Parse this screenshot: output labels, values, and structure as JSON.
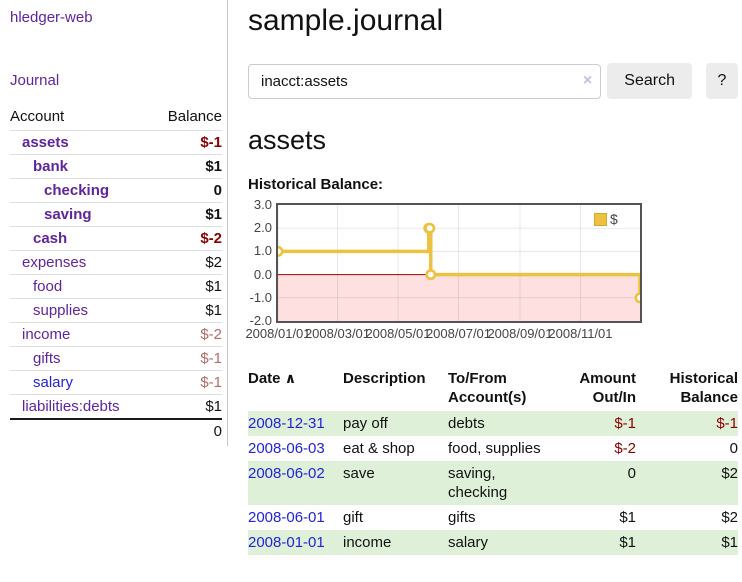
{
  "colors": {
    "link_purple": "#5f249f",
    "link_blue": "#2222dd",
    "negative_strong": "#8b0000",
    "negative_soft": "#b36b6b",
    "stripe_green": "#dff0d8",
    "series_gold": "#edc240"
  },
  "sidebar": {
    "app_title": "hledger-web",
    "journal_link": "Journal",
    "accounts_table": {
      "account_header": "Account",
      "balance_header": "Balance",
      "rows": [
        {
          "account": "assets",
          "level": 1,
          "bold": true,
          "balance": "$-1",
          "balance_style": "neg-strong",
          "link_style": "purple"
        },
        {
          "account": "bank",
          "level": 2,
          "bold": true,
          "balance": "$1",
          "balance_style": "plain",
          "link_style": "purple"
        },
        {
          "account": "checking",
          "level": 3,
          "bold": true,
          "balance": "0",
          "balance_style": "plain",
          "link_style": "purple"
        },
        {
          "account": "saving",
          "level": 3,
          "bold": true,
          "balance": "$1",
          "balance_style": "plain",
          "link_style": "purple"
        },
        {
          "account": "cash",
          "level": 2,
          "bold": true,
          "balance": "$-2",
          "balance_style": "neg-strong",
          "link_style": "purple"
        },
        {
          "account": "expenses",
          "level": 1,
          "bold": false,
          "balance": "$2",
          "balance_style": "plain",
          "link_style": "purple"
        },
        {
          "account": "food",
          "level": 2,
          "bold": false,
          "balance": "$1",
          "balance_style": "plain",
          "link_style": "purple"
        },
        {
          "account": "supplies",
          "level": 2,
          "bold": false,
          "balance": "$1",
          "balance_style": "plain",
          "link_style": "purple"
        },
        {
          "account": "income",
          "level": 1,
          "bold": false,
          "balance": "$-2",
          "balance_style": "neg-soft",
          "link_style": "purple"
        },
        {
          "account": "gifts",
          "level": 2,
          "bold": false,
          "balance": "$-1",
          "balance_style": "neg-soft",
          "link_style": "purple"
        },
        {
          "account": "salary",
          "level": 2,
          "bold": false,
          "balance": "$-1",
          "balance_style": "neg-soft",
          "link_style": "blue"
        },
        {
          "account": "liabilities:debts",
          "level": 1,
          "bold": false,
          "balance": "$1",
          "balance_style": "plain",
          "link_style": "purple"
        }
      ],
      "total": "0"
    }
  },
  "main": {
    "title": "sample.journal",
    "search": {
      "value": "inacct:assets",
      "clear_icon": "×",
      "button_label": "Search",
      "help_label": "?"
    },
    "account_heading": "assets",
    "chart_heading": "Historical Balance:"
  },
  "chart_data": {
    "type": "line",
    "step": "step-after",
    "title": "Historical Balance",
    "x_range": [
      "2008-01-01",
      "2008-12-31"
    ],
    "ylim": [
      -2,
      3
    ],
    "y_ticks": [
      {
        "label": "3.0",
        "value": 3
      },
      {
        "label": "2.0",
        "value": 2
      },
      {
        "label": "1.0",
        "value": 1
      },
      {
        "label": "0.0",
        "value": 0
      },
      {
        "label": "-1.0",
        "value": -1
      },
      {
        "label": "-2.0",
        "value": -2
      }
    ],
    "x_ticks": [
      {
        "label": "2008/01/01",
        "date": "2008-01-01"
      },
      {
        "label": "2008/03/01",
        "date": "2008-03-01"
      },
      {
        "label": "2008/05/01",
        "date": "2008-05-01"
      },
      {
        "label": "2008/07/01",
        "date": "2008-07-01"
      },
      {
        "label": "2008/09/01",
        "date": "2008-09-01"
      },
      {
        "label": "2008/11/01",
        "date": "2008-11-01"
      }
    ],
    "series": [
      {
        "name": "$",
        "color": "#edc240",
        "points": [
          [
            "2008-01-01",
            1
          ],
          [
            "2008-06-01",
            2
          ],
          [
            "2008-06-02",
            2
          ],
          [
            "2008-06-03",
            0
          ],
          [
            "2008-12-31",
            -1
          ]
        ]
      }
    ],
    "grid_on": true,
    "grid_color": "rgba(0,0,0,0.09)",
    "zero_line_color": "#990000",
    "negative_region_color": "rgba(255,0,0,0.12)",
    "border_color": "#545454",
    "legend": {
      "label": "$",
      "swatch_color": "#edc240",
      "swatch_border": "#d3a928",
      "position": "top-right"
    }
  },
  "register": {
    "headers": {
      "date": "Date",
      "sort_icon": "∧",
      "description": "Description",
      "accounts": "To/From Account(s)",
      "amount": "Amount Out/In",
      "balance": "Historical Balance"
    },
    "rows": [
      {
        "date": "2008-12-31",
        "description": "pay off",
        "accounts": "debts",
        "amount": "$-1",
        "amount_style": "neg",
        "balance": "$-1",
        "balance_style": "neg",
        "shade": true
      },
      {
        "date": "2008-06-03",
        "description": "eat & shop",
        "accounts": "food, supplies",
        "amount": "$-2",
        "amount_style": "neg",
        "balance": "0",
        "balance_style": "plain",
        "shade": false
      },
      {
        "date": "2008-06-02",
        "description": "save",
        "accounts": "saving, checking",
        "amount": "0",
        "amount_style": "plain",
        "balance": "$2",
        "balance_style": "plain",
        "shade": true
      },
      {
        "date": "2008-06-01",
        "description": "gift",
        "accounts": "gifts",
        "amount": "$1",
        "amount_style": "plain",
        "balance": "$2",
        "balance_style": "plain",
        "shade": false
      },
      {
        "date": "2008-01-01",
        "description": "income",
        "accounts": "salary",
        "amount": "$1",
        "amount_style": "plain",
        "balance": "$1",
        "balance_style": "plain",
        "shade": true
      }
    ]
  }
}
